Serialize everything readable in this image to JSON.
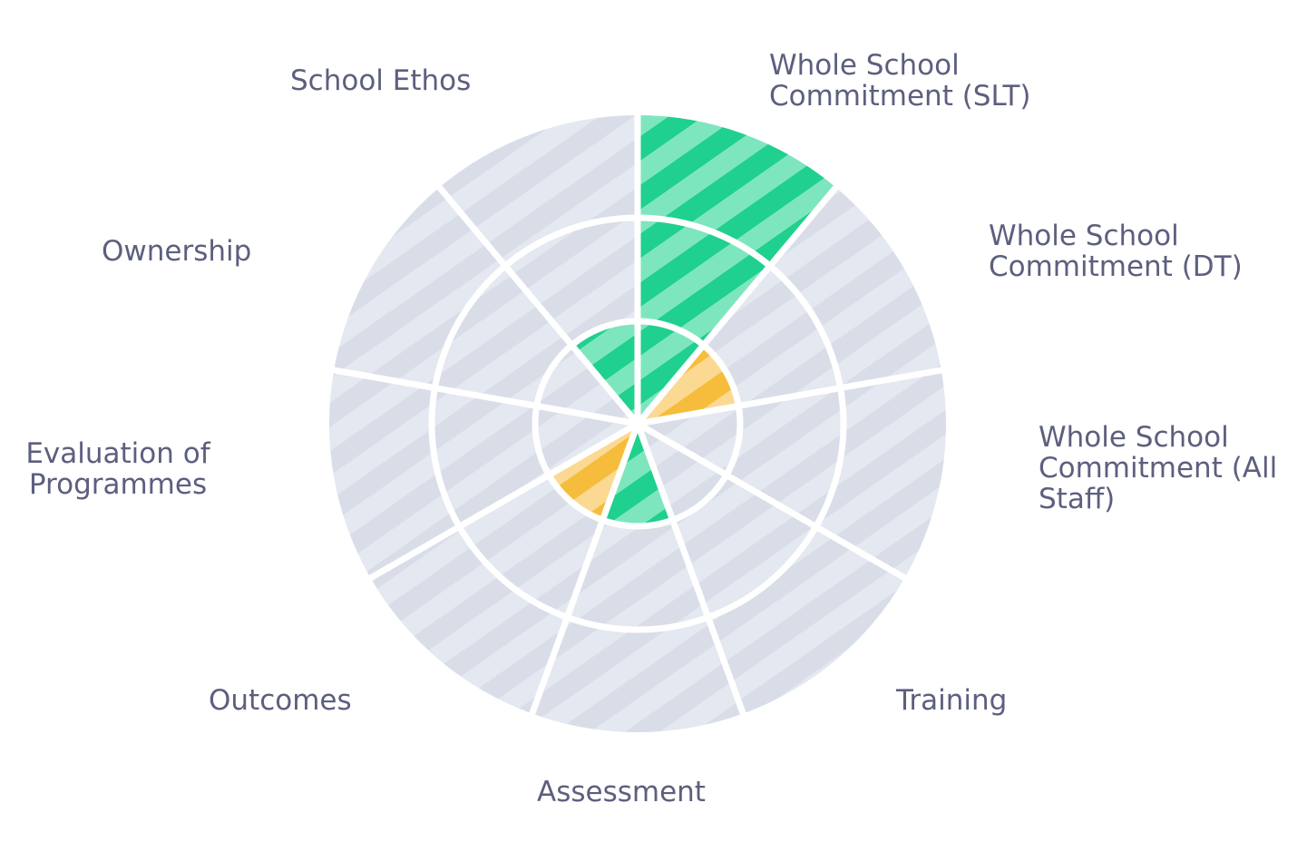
{
  "chart_data": {
    "type": "polar-area",
    "max_level": 3,
    "colors": {
      "track": "#e4e8f0",
      "track_stripe": "#d8dde8",
      "ring_line": "#ffffff",
      "green": "#7ee6be",
      "green_stripe": "#20d08e",
      "amber": "#fbd992",
      "amber_stripe": "#f5bd3b",
      "label": "#5c5f7e"
    },
    "categories": [
      {
        "label": "Whole School Commitment (SLT)",
        "label_lines": [
          "Whole School",
          "Commitment (SLT)"
        ],
        "value": 3,
        "color": "green"
      },
      {
        "label": "Whole School Commitment (DT)",
        "label_lines": [
          "Whole School",
          "Commitment (DT)"
        ],
        "value": 1,
        "color": "amber"
      },
      {
        "label": "Whole School Commitment (All Staff)",
        "label_lines": [
          "Whole School",
          "Commitment (All",
          "Staff)"
        ],
        "value": 0,
        "color": "green"
      },
      {
        "label": "Training",
        "label_lines": [
          "Training"
        ],
        "value": 0,
        "color": "green"
      },
      {
        "label": "Assessment",
        "label_lines": [
          "Assessment"
        ],
        "value": 1,
        "color": "green"
      },
      {
        "label": "Outcomes",
        "label_lines": [
          "Outcomes"
        ],
        "value": 1,
        "color": "amber"
      },
      {
        "label": "Evaluation of Programmes",
        "label_lines": [
          "Evaluation of",
          "Programmes"
        ],
        "value": 0,
        "color": "green"
      },
      {
        "label": "Ownership",
        "label_lines": [
          "Ownership"
        ],
        "value": 0,
        "color": "green"
      },
      {
        "label": "School Ethos",
        "label_lines": [
          "School Ethos"
        ],
        "value": 1,
        "color": "green"
      }
    ]
  }
}
